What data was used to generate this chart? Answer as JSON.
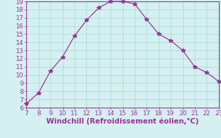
{
  "x": [
    7,
    8,
    9,
    10,
    11,
    12,
    13,
    14,
    15,
    16,
    17,
    18,
    19,
    20,
    21,
    22,
    23
  ],
  "y": [
    6.5,
    7.8,
    10.5,
    12.2,
    14.8,
    16.7,
    18.2,
    19.0,
    19.0,
    18.7,
    16.8,
    15.0,
    14.2,
    13.0,
    11.0,
    10.3,
    9.2
  ],
  "xlim": [
    7,
    23
  ],
  "ylim": [
    6,
    19
  ],
  "xticks": [
    7,
    8,
    9,
    10,
    11,
    12,
    13,
    14,
    15,
    16,
    17,
    18,
    19,
    20,
    21,
    22,
    23
  ],
  "yticks": [
    6,
    7,
    8,
    9,
    10,
    11,
    12,
    13,
    14,
    15,
    16,
    17,
    18,
    19
  ],
  "xlabel": "Windchill (Refroidissement éolien,°C)",
  "line_color": "#993399",
  "marker": "*",
  "marker_size": 4,
  "bg_color": "#d4f0f0",
  "grid_color": "#b0d8d8",
  "axis_label_color": "#993399",
  "tick_color": "#993399",
  "spine_color": "#993399",
  "xlabel_fontsize": 7.5,
  "tick_fontsize": 6.5
}
